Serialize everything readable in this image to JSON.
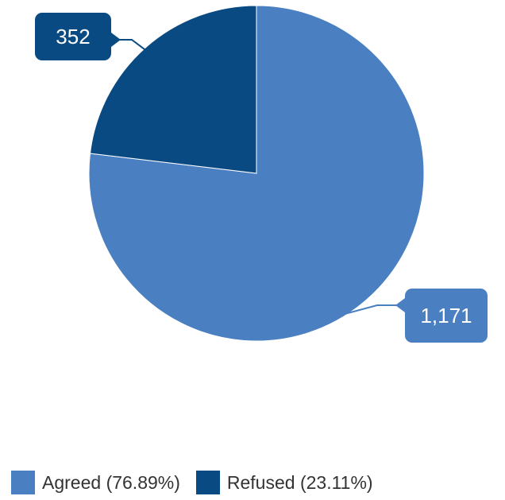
{
  "chart_data": {
    "type": "pie",
    "slices": [
      {
        "label": "Agreed",
        "value": 1171,
        "value_label": "1,171",
        "percent_label": "(76.89%)",
        "color": "#4a7fc1"
      },
      {
        "label": "Refused",
        "value": 352,
        "value_label": "352",
        "percent_label": "(23.11%)",
        "color": "#0a4a82"
      }
    ],
    "legend_position": "bottom",
    "start_angle": "top, clockwise"
  }
}
